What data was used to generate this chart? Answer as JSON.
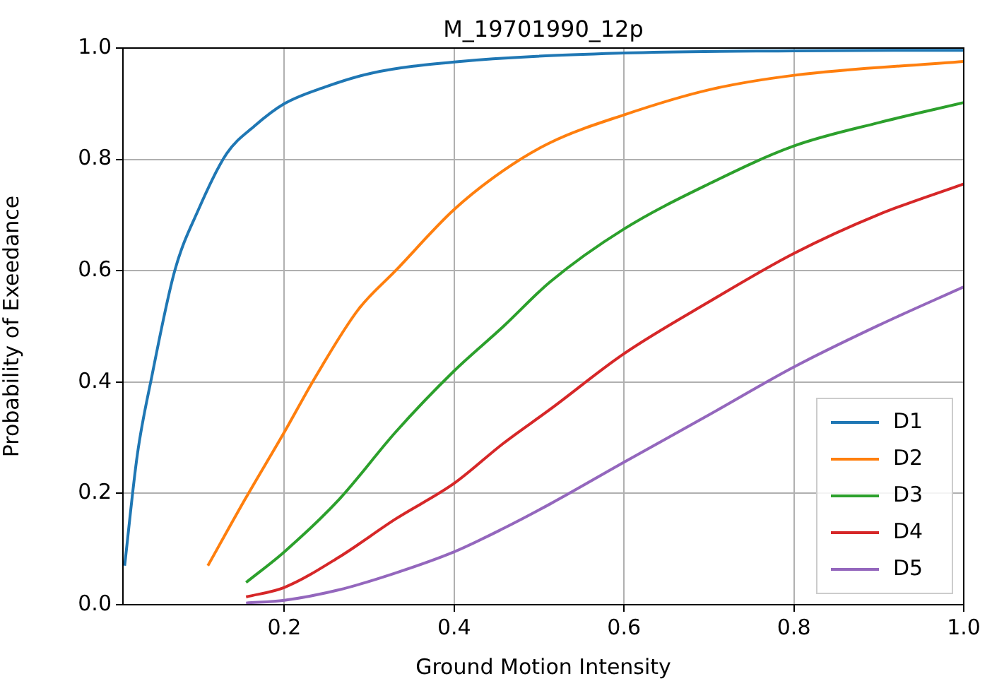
{
  "chart_data": {
    "type": "line",
    "title": "M_19701990_12p",
    "xlabel": "Ground Motion Intensity",
    "ylabel": "Probability of Exeedance",
    "xlim": [
      0.01,
      1.0
    ],
    "ylim": [
      0,
      1.0
    ],
    "xticks": [
      0.2,
      0.4,
      0.6,
      0.8,
      {
        "value": 1,
        "label": "1.0"
      }
    ],
    "yticks": [
      {
        "value": 0,
        "label": "0.0"
      },
      0.2,
      0.4,
      0.6,
      0.8,
      {
        "value": 1,
        "label": "1.0"
      }
    ],
    "grid": true,
    "legend": "bottom right",
    "marker": "none",
    "line_style": "solid",
    "series": [
      {
        "name": "D1",
        "color": "#1f77b4",
        "x": [
          0.012,
          0.027,
          0.044,
          0.071,
          0.099,
          0.132,
          0.165,
          0.2,
          0.248,
          0.303,
          0.4,
          0.6,
          0.8,
          1.0
        ],
        "values": [
          0.07,
          0.27,
          0.41,
          0.6,
          0.71,
          0.81,
          0.86,
          0.9,
          0.93,
          0.955,
          0.975,
          0.991,
          0.995,
          0.996
        ]
      },
      {
        "name": "D2",
        "color": "#ff7f0e",
        "x": [
          0.11,
          0.154,
          0.2,
          0.237,
          0.287,
          0.331,
          0.4,
          0.458,
          0.513,
          0.6,
          0.7,
          0.8,
          1.0
        ],
        "values": [
          0.07,
          0.19,
          0.31,
          0.41,
          0.53,
          0.6,
          0.71,
          0.78,
          0.83,
          0.88,
          0.925,
          0.951,
          0.976
        ]
      },
      {
        "name": "D3",
        "color": "#2ca02c",
        "x": [
          0.155,
          0.2,
          0.265,
          0.331,
          0.4,
          0.458,
          0.513,
          0.6,
          0.7,
          0.8,
          0.9,
          1.0
        ],
        "values": [
          0.04,
          0.095,
          0.19,
          0.31,
          0.42,
          0.5,
          0.58,
          0.675,
          0.756,
          0.824,
          0.866,
          0.902
        ]
      },
      {
        "name": "D4",
        "color": "#d62728",
        "x": [
          0.155,
          0.2,
          0.265,
          0.331,
          0.4,
          0.458,
          0.513,
          0.6,
          0.7,
          0.8,
          0.9,
          1.0
        ],
        "values": [
          0.014,
          0.031,
          0.086,
          0.154,
          0.218,
          0.29,
          0.351,
          0.451,
          0.544,
          0.631,
          0.701,
          0.756
        ]
      },
      {
        "name": "D5",
        "color": "#9467bd",
        "x": [
          0.155,
          0.2,
          0.265,
          0.331,
          0.4,
          0.458,
          0.513,
          0.6,
          0.7,
          0.8,
          0.9,
          1.0
        ],
        "values": [
          0.003,
          0.008,
          0.027,
          0.057,
          0.095,
          0.137,
          0.181,
          0.256,
          0.341,
          0.427,
          0.502,
          0.571
        ]
      }
    ]
  }
}
